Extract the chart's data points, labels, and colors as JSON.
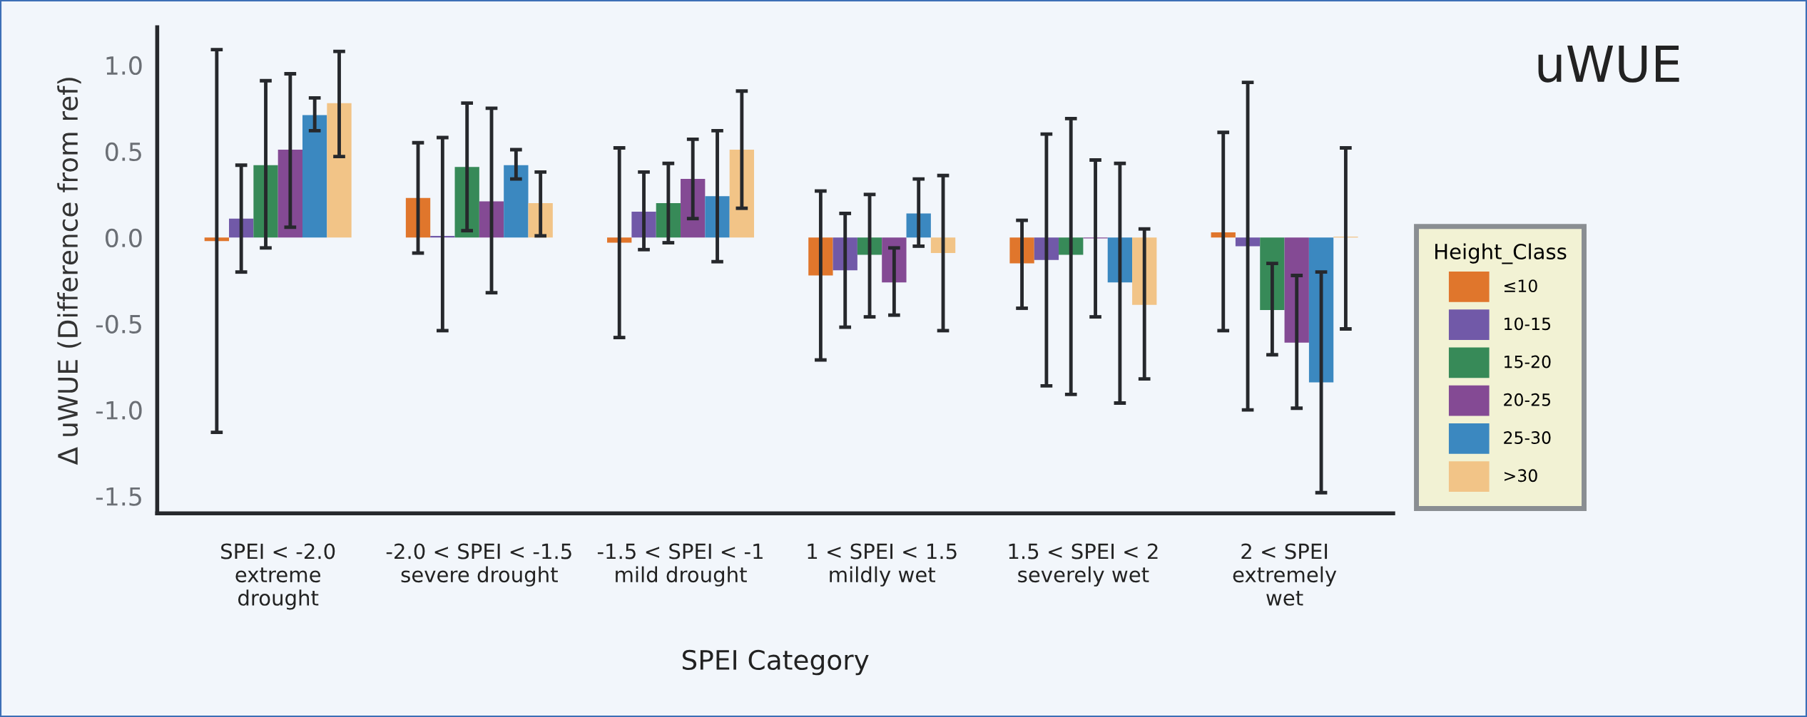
{
  "chart_data": {
    "type": "bar",
    "title": "uWUE",
    "xlabel": "SPEI Category",
    "ylabel": "Δ uWUE (Difference from ref)",
    "legend_title": "Height_Class",
    "categories": [
      "SPEI < -2.0\nextreme\ndrought",
      "-2.0 < SPEI < -1.5\nsevere drought",
      "-1.5 < SPEI < -1\nmild drought",
      "1 < SPEI < 1.5\nmildly wet",
      "1.5 < SPEI < 2\nseverely wet",
      "2 < SPEI\nextremely\nwet"
    ],
    "series": [
      {
        "name": "≤10",
        "color": "#e0762c",
        "values": [
          -0.02,
          0.23,
          -0.03,
          -0.22,
          -0.15,
          0.03
        ],
        "errors": [
          [
            -1.13,
            1.09
          ],
          [
            -0.09,
            0.55
          ],
          [
            -0.58,
            0.52
          ],
          [
            -0.71,
            0.27
          ],
          [
            -0.41,
            0.1
          ],
          [
            -0.54,
            0.61
          ]
        ]
      },
      {
        "name": "10-15",
        "color": "#7159a8",
        "values": [
          0.11,
          0.01,
          0.15,
          -0.19,
          -0.13,
          -0.05
        ],
        "errors": [
          [
            -0.2,
            0.42
          ],
          [
            -0.54,
            0.58
          ],
          [
            -0.07,
            0.38
          ],
          [
            -0.52,
            0.14
          ],
          [
            -0.86,
            0.6
          ],
          [
            -1.0,
            0.9
          ]
        ]
      },
      {
        "name": "15-20",
        "color": "#378a58",
        "values": [
          0.42,
          0.41,
          0.2,
          -0.1,
          -0.1,
          -0.42
        ],
        "errors": [
          [
            -0.06,
            0.91
          ],
          [
            0.04,
            0.78
          ],
          [
            -0.03,
            0.43
          ],
          [
            -0.46,
            0.25
          ],
          [
            -0.91,
            0.69
          ],
          [
            -0.68,
            -0.15
          ]
        ]
      },
      {
        "name": "20-25",
        "color": "#844a94",
        "values": [
          0.51,
          0.21,
          0.34,
          -0.26,
          -0.005,
          -0.61
        ],
        "errors": [
          [
            0.06,
            0.95
          ],
          [
            -0.32,
            0.75
          ],
          [
            0.11,
            0.57
          ],
          [
            -0.45,
            -0.06
          ],
          [
            -0.46,
            0.45
          ],
          [
            -0.99,
            -0.22
          ]
        ]
      },
      {
        "name": "25-30",
        "color": "#3b88c0",
        "values": [
          0.71,
          0.42,
          0.24,
          0.14,
          -0.26,
          -0.84
        ],
        "errors": [
          [
            0.62,
            0.81
          ],
          [
            0.34,
            0.51
          ],
          [
            -0.14,
            0.62
          ],
          [
            -0.05,
            0.34
          ],
          [
            -0.96,
            0.43
          ],
          [
            -1.48,
            -0.2
          ]
        ]
      },
      {
        "name": ">30",
        "color": "#f2c487",
        "values": [
          0.78,
          0.2,
          0.51,
          -0.09,
          -0.39,
          0.005
        ],
        "errors": [
          [
            0.47,
            1.08
          ],
          [
            0.01,
            0.38
          ],
          [
            0.17,
            0.85
          ],
          [
            -0.54,
            0.36
          ],
          [
            -0.82,
            0.05
          ],
          [
            -0.53,
            0.52
          ]
        ]
      }
    ],
    "ylim": [
      -1.6,
      1.22
    ],
    "yticks": [
      {
        "value": -1.5,
        "label": "-1.5"
      },
      {
        "value": -1.0,
        "label": "-1.0"
      },
      {
        "value": -0.5,
        "label": "-0.5"
      },
      {
        "value": 0.0,
        "label": "0.0"
      },
      {
        "value": 0.5,
        "label": "0.5"
      },
      {
        "value": 1.0,
        "label": "1.0"
      }
    ],
    "grid": false,
    "legend": "right"
  }
}
